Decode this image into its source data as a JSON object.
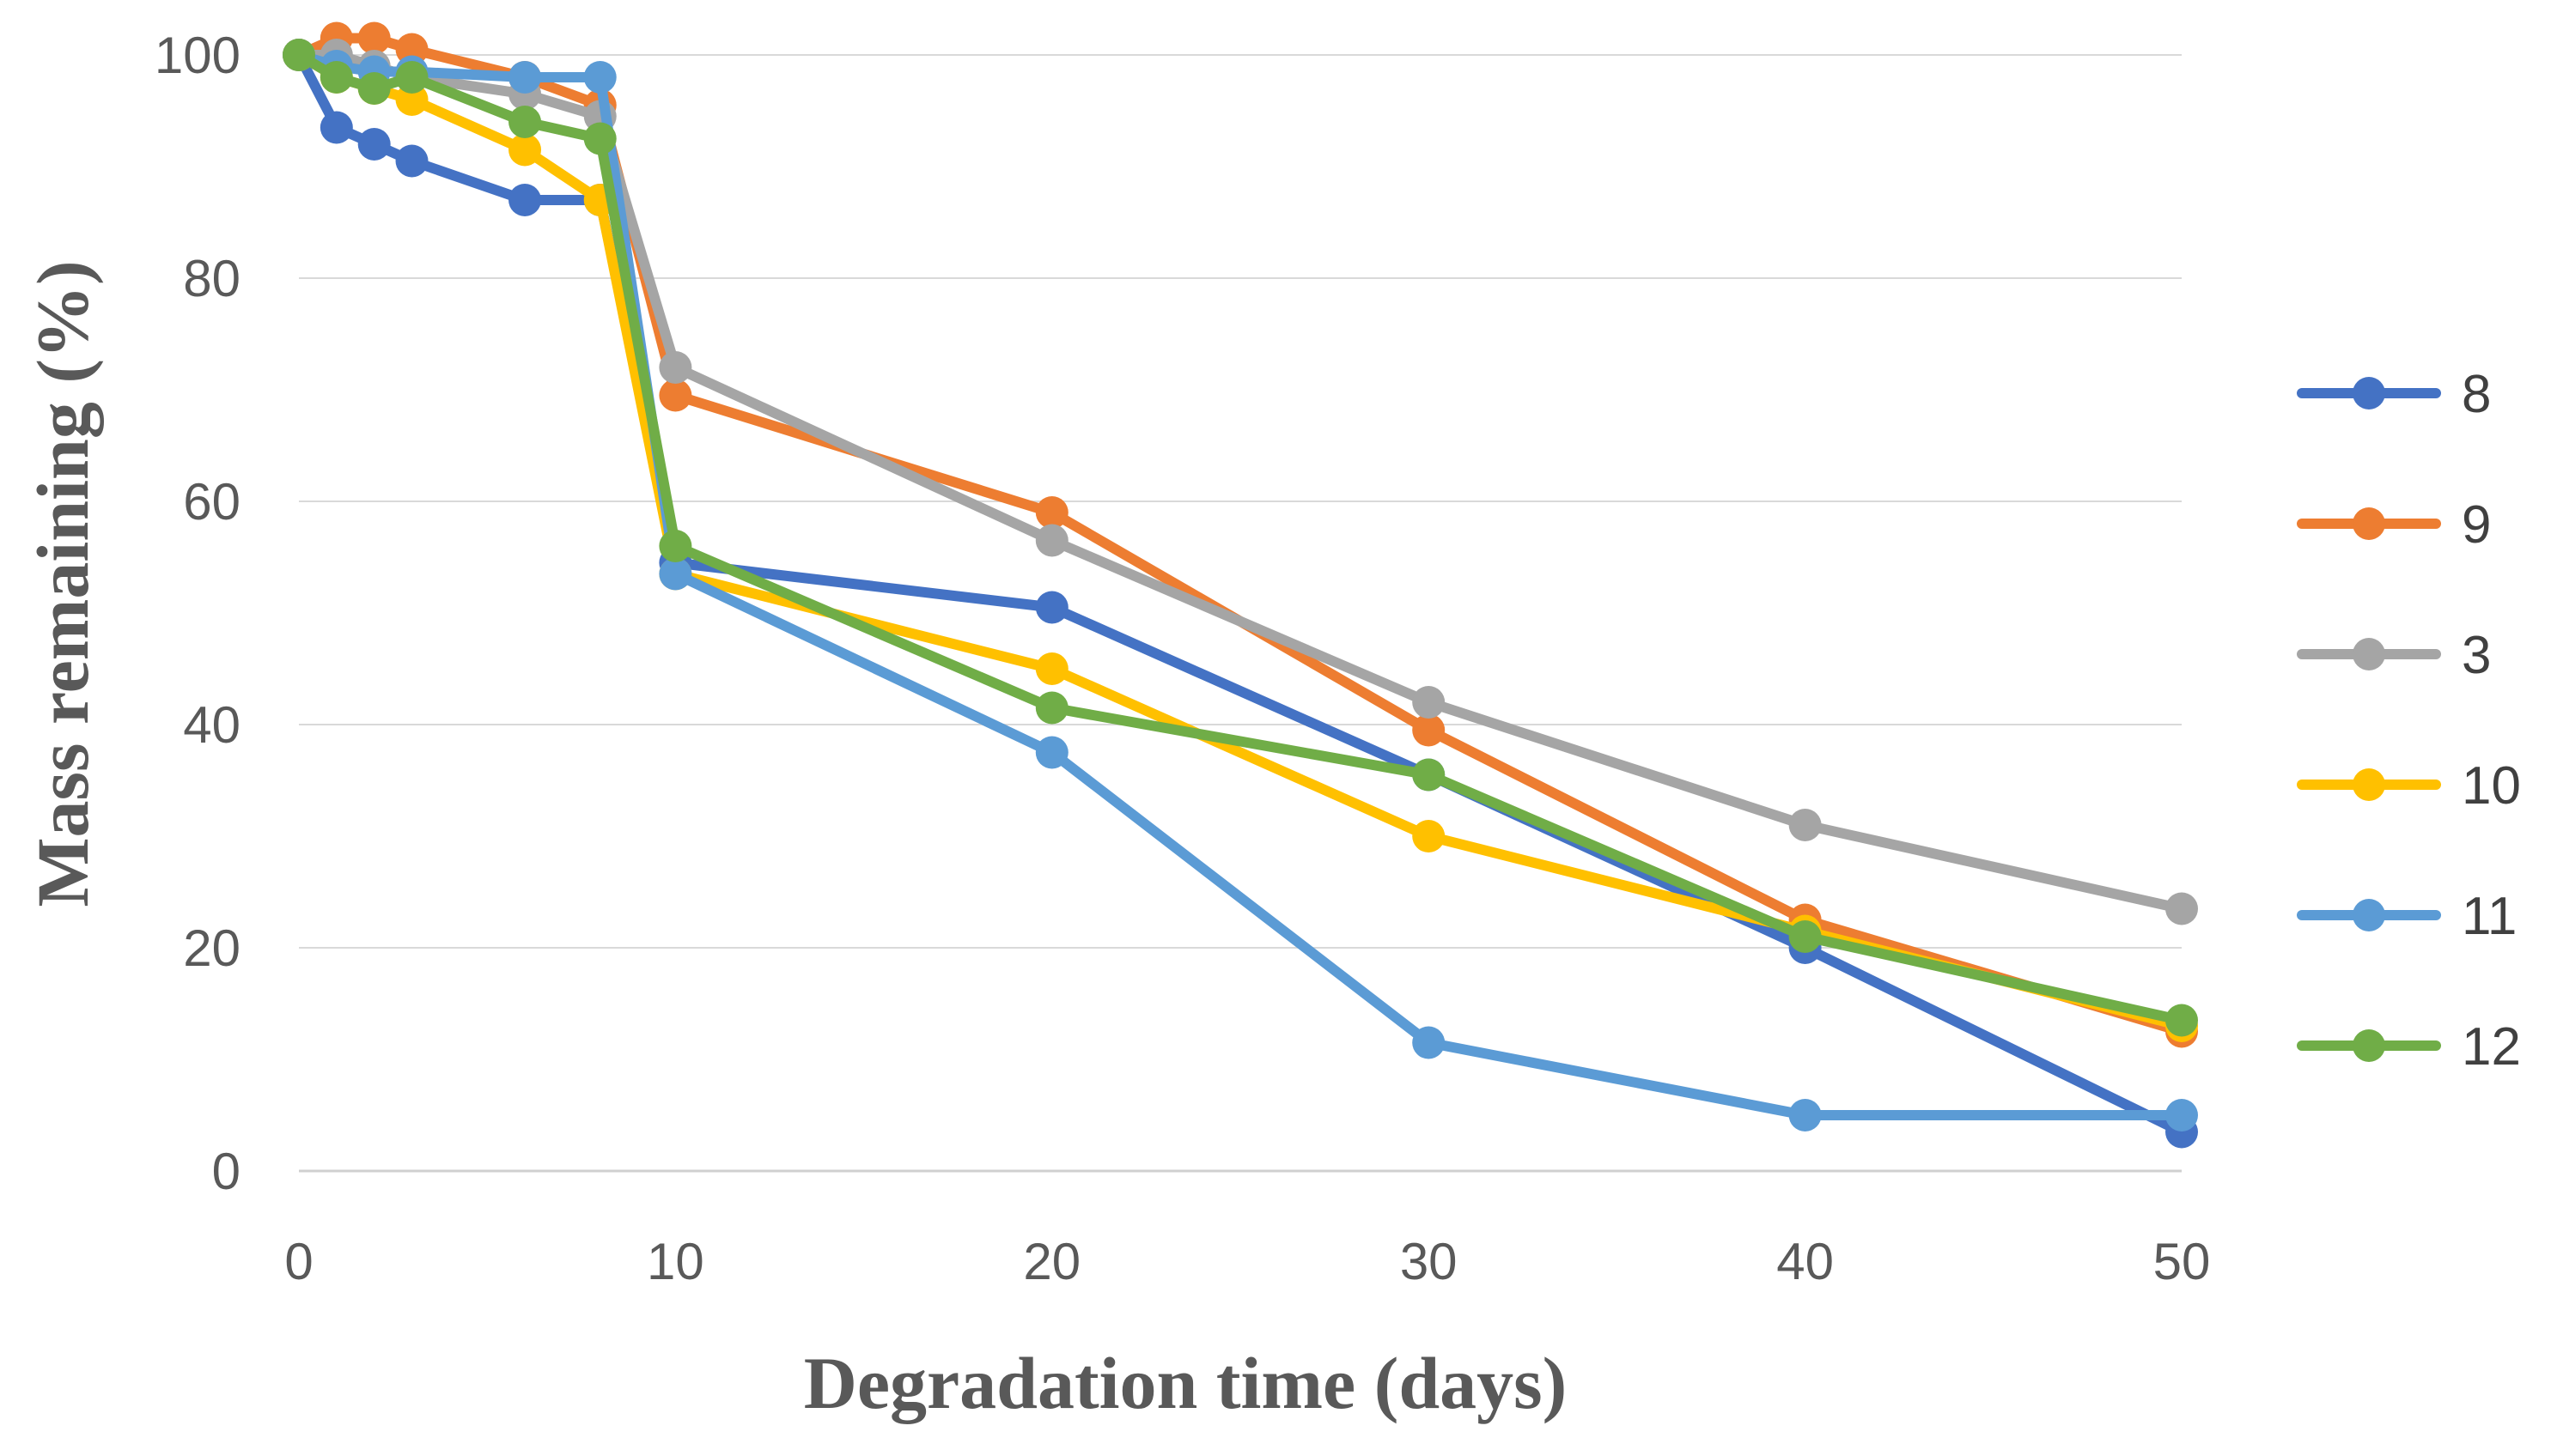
{
  "chart_data": {
    "type": "line",
    "title": "",
    "xlabel": "Degradation time (days)",
    "ylabel": "Mass remaining (%)",
    "xlim": [
      0,
      50
    ],
    "ylim": [
      0,
      100
    ],
    "x_ticks": [
      "0",
      "10",
      "20",
      "30",
      "40",
      "50"
    ],
    "y_ticks": [
      "0",
      "20",
      "40",
      "60",
      "80",
      "100"
    ],
    "grid": "horizontal",
    "legend_position": "right",
    "x": [
      0,
      1,
      2,
      3,
      6,
      8,
      10,
      20,
      30,
      40,
      50
    ],
    "series": [
      {
        "name": "8",
        "color": "#4472C4",
        "values": [
          100,
          93.5,
          92,
          90.5,
          87,
          87,
          54.5,
          50.5,
          35.5,
          20,
          3.5
        ]
      },
      {
        "name": "9",
        "color": "#ED7D31",
        "values": [
          100,
          101.5,
          101.5,
          100.5,
          98,
          95.5,
          69.5,
          59,
          39.5,
          22.5,
          12.5
        ]
      },
      {
        "name": "3",
        "color": "#A5A5A5",
        "values": [
          100,
          100,
          99,
          98,
          96.5,
          94.5,
          72,
          56.5,
          42,
          31,
          23.5
        ]
      },
      {
        "name": "10",
        "color": "#FFC000",
        "values": [
          100,
          98,
          97,
          96,
          91.5,
          87,
          53.5,
          45,
          30,
          21.5,
          13
        ]
      },
      {
        "name": "11",
        "color": "#5B9BD5",
        "values": [
          100,
          99,
          98.5,
          98.5,
          98,
          98,
          53.5,
          37.5,
          11.5,
          5,
          5
        ]
      },
      {
        "name": "12",
        "color": "#70AD47",
        "values": [
          100,
          98,
          97,
          98,
          94,
          92.5,
          56,
          41.5,
          35.5,
          21,
          13.5
        ]
      }
    ]
  }
}
